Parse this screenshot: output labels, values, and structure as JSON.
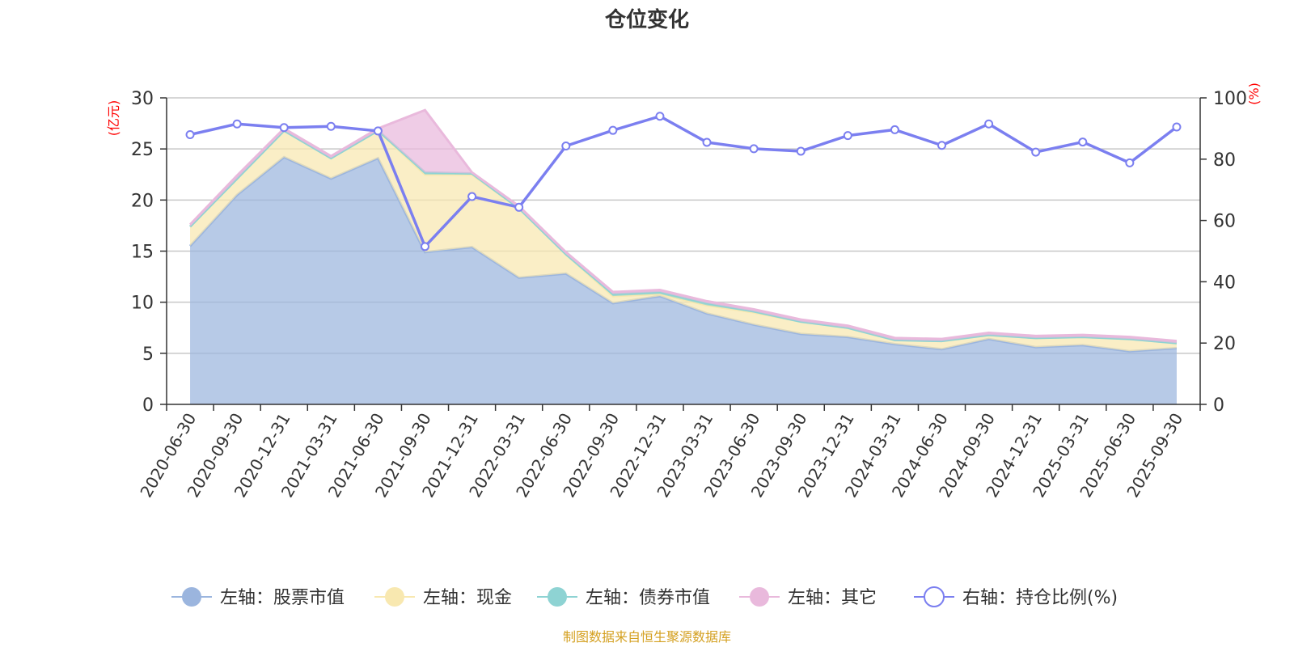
{
  "chart_data": {
    "type": "area",
    "title": "仓位变化",
    "left_axis_unit": "(亿元)",
    "right_axis_unit": "(%)",
    "left_ylim": [
      0,
      30
    ],
    "left_ticks": [
      0,
      5,
      10,
      15,
      20,
      25,
      30
    ],
    "right_ylim": [
      0,
      100
    ],
    "right_ticks": [
      0,
      20,
      40,
      60,
      80,
      100
    ],
    "categories": [
      "2020-06-30",
      "2020-09-30",
      "2020-12-31",
      "2021-03-31",
      "2021-06-30",
      "2021-09-30",
      "2021-12-31",
      "2022-03-31",
      "2022-06-30",
      "2022-09-30",
      "2022-12-31",
      "2023-03-31",
      "2023-06-30",
      "2023-09-30",
      "2023-12-31",
      "2024-03-31",
      "2024-06-30",
      "2024-09-30",
      "2024-12-31",
      "2025-03-31",
      "2025-06-30",
      "2025-09-30"
    ],
    "series": [
      {
        "name": "左轴：股票市值",
        "axis": "left",
        "kind": "stacked-area",
        "color": "#9bb5de",
        "values": [
          15.5,
          20.5,
          24.2,
          22.1,
          24.1,
          14.9,
          15.4,
          12.4,
          12.8,
          9.9,
          10.6,
          8.9,
          7.8,
          6.9,
          6.6,
          5.9,
          5.4,
          6.4,
          5.6,
          5.8,
          5.2,
          5.5
        ]
      },
      {
        "name": "左轴：现金",
        "axis": "left",
        "kind": "stacked-area",
        "color": "#f8e8b0",
        "values": [
          1.9,
          1.6,
          2.6,
          2.0,
          2.7,
          7.6,
          7.1,
          6.8,
          1.9,
          0.7,
          0.2,
          0.8,
          1.2,
          1.2,
          0.9,
          0.4,
          0.8,
          0.4,
          0.9,
          0.8,
          1.2,
          0.5
        ]
      },
      {
        "name": "左轴：债券市值",
        "axis": "left",
        "kind": "stacked-area",
        "color": "#8ed3d3",
        "values": [
          0,
          0,
          0,
          0,
          0,
          0.2,
          0.1,
          0,
          0,
          0.2,
          0.2,
          0.2,
          0.1,
          0,
          0,
          0,
          0,
          0,
          0,
          0,
          0,
          0
        ]
      },
      {
        "name": "左轴：其它",
        "axis": "left",
        "kind": "stacked-area",
        "color": "#e9b9dc",
        "values": [
          0.2,
          0.3,
          0.2,
          0.2,
          0.2,
          6.1,
          0.1,
          0.2,
          0.2,
          0.2,
          0.2,
          0.2,
          0.2,
          0.2,
          0.2,
          0.2,
          0.2,
          0.2,
          0.2,
          0.2,
          0.2,
          0.2
        ]
      },
      {
        "name": "右轴：持仓比例(%)",
        "axis": "right",
        "kind": "line",
        "color": "#7b7ff0",
        "values": [
          88.0,
          91.5,
          90.3,
          90.7,
          89.2,
          51.5,
          67.8,
          64.3,
          84.3,
          89.4,
          94.0,
          85.5,
          83.4,
          82.6,
          87.7,
          89.6,
          84.5,
          91.5,
          82.3,
          85.6,
          78.8,
          90.5
        ]
      }
    ],
    "grid": true,
    "legend_position": "bottom"
  },
  "source_text": "制图数据来自恒生聚源数据库"
}
